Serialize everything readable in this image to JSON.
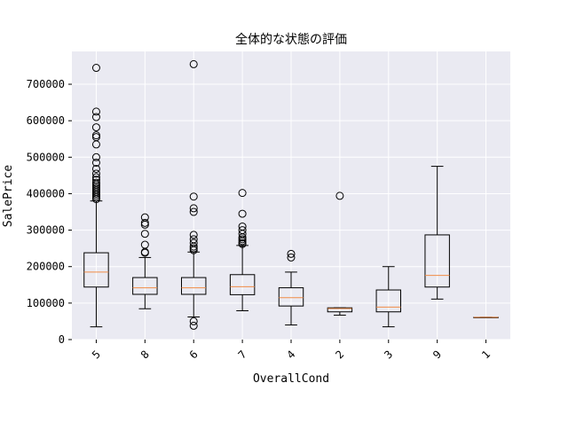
{
  "chart_data": {
    "type": "boxplot",
    "title": "全体的な状態の評価",
    "xlabel": "OverallCond",
    "ylabel": "SalePrice",
    "categories": [
      "5",
      "8",
      "6",
      "7",
      "4",
      "2",
      "3",
      "9",
      "1"
    ],
    "ylim": [
      0,
      790000
    ],
    "yticks": [
      0,
      100000,
      200000,
      300000,
      400000,
      500000,
      600000,
      700000
    ],
    "ytick_labels": [
      "0",
      "100000",
      "200000",
      "300000",
      "400000",
      "500000",
      "600000",
      "700000"
    ],
    "grid": true,
    "boxes": [
      {
        "category": "5",
        "whisker_low": 34900,
        "q1": 144000,
        "median": 185000,
        "q3": 238000,
        "whisker_high": 380000,
        "outliers": [
          385000,
          390000,
          395000,
          400000,
          405000,
          410000,
          415000,
          420000,
          425000,
          430000,
          438000,
          445000,
          455000,
          468000,
          485000,
          500000,
          535000,
          555000,
          560000,
          582000,
          610000,
          625000,
          745000
        ]
      },
      {
        "category": "8",
        "whisker_low": 84500,
        "q1": 124000,
        "median": 142000,
        "q3": 170000,
        "whisker_high": 225000,
        "outliers": [
          238000,
          240000,
          260000,
          290000,
          315000,
          320000,
          335000
        ]
      },
      {
        "category": "6",
        "whisker_low": 62000,
        "q1": 124000,
        "median": 142000,
        "q3": 170000,
        "whisker_high": 240000,
        "outliers": [
          37900,
          50000,
          245000,
          250000,
          255000,
          265000,
          275000,
          287000,
          350000,
          360000,
          392000,
          755000
        ]
      },
      {
        "category": "7",
        "whisker_low": 79000,
        "q1": 123000,
        "median": 145000,
        "q3": 178000,
        "whisker_high": 258000,
        "outliers": [
          262000,
          265000,
          270000,
          275000,
          280000,
          290000,
          300000,
          310000,
          345000,
          402000
        ]
      },
      {
        "category": "4",
        "whisker_low": 40000,
        "q1": 92000,
        "median": 115000,
        "q3": 142000,
        "whisker_high": 185000,
        "outliers": [
          225000,
          235000
        ]
      },
      {
        "category": "2",
        "whisker_low": 67000,
        "q1": 76000,
        "median": 85000,
        "q3": 87000,
        "whisker_high": 87000,
        "outliers": [
          394000
        ]
      },
      {
        "category": "3",
        "whisker_low": 35000,
        "q1": 76000,
        "median": 89000,
        "q3": 136000,
        "whisker_high": 200000,
        "outliers": []
      },
      {
        "category": "9",
        "whisker_low": 111000,
        "q1": 144000,
        "median": 176000,
        "q3": 287000,
        "whisker_high": 475000,
        "outliers": []
      },
      {
        "category": "1",
        "whisker_low": 61000,
        "q1": 61000,
        "median": 61000,
        "q3": 61000,
        "whisker_high": 61000,
        "outliers": []
      }
    ],
    "colors": {
      "plot_background": "#eaeaf2",
      "grid": "#ffffff",
      "box": "#000000",
      "median": "#f08c46"
    }
  }
}
